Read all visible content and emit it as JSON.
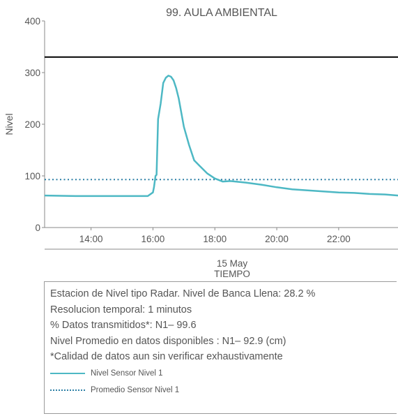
{
  "chart_data": {
    "type": "line",
    "title": "99. AULA AMBIENTAL",
    "ylabel": "Nivel",
    "xlabel": "TIEMPO",
    "date_label": "15 May",
    "ylim": [
      0,
      400
    ],
    "yticks": [
      "0",
      "100",
      "200",
      "300",
      "400"
    ],
    "xlim": [
      "12:30",
      "23:55"
    ],
    "xticks": [
      "14:00",
      "16:00",
      "18:00",
      "20:00",
      "22:00"
    ],
    "reference_lines": [
      {
        "value": 330,
        "style": "solid",
        "color": "#000000"
      },
      {
        "value": 92.9,
        "style": "dotted",
        "color": "#2b7fa5"
      }
    ],
    "series": [
      {
        "style": "solid",
        "color": "#4db8c4",
        "x": [
          "12:30",
          "13:30",
          "14:30",
          "15:30",
          "15:50",
          "16:00",
          "16:02",
          "16:05",
          "16:07",
          "16:10",
          "16:15",
          "16:20",
          "16:25",
          "16:30",
          "16:35",
          "16:40",
          "16:45",
          "16:50",
          "17:00",
          "17:10",
          "17:20",
          "17:30",
          "17:45",
          "18:00",
          "18:15",
          "18:30",
          "19:00",
          "19:30",
          "20:00",
          "20:30",
          "21:00",
          "21:30",
          "22:00",
          "22:30",
          "23:00",
          "23:30",
          "23:55"
        ],
        "y": [
          62,
          61,
          61,
          61,
          61,
          68,
          78,
          100,
          102,
          210,
          240,
          280,
          290,
          294,
          292,
          285,
          270,
          250,
          195,
          160,
          130,
          120,
          105,
          95,
          89,
          90,
          87,
          83,
          78,
          74,
          72,
          70,
          68,
          67,
          65,
          64,
          62
        ]
      }
    ]
  },
  "info": {
    "line1": "Estacion de Nivel tipo Radar. Nivel de Banca Llena: 28.2 %",
    "line2": "Resolucion temporal: 1 minutos",
    "line3": "% Datos transmitidos*: N1– 99.6",
    "line4": "Nivel Promedio en datos disponibles : N1– 92.9 (cm)",
    "line5": "*Calidad de datos aun sin verificar exhaustivamente",
    "legend_solid_label": "Nivel Sensor Nivel 1",
    "legend_dotted_label": "Promedio Sensor Nivel 1"
  }
}
